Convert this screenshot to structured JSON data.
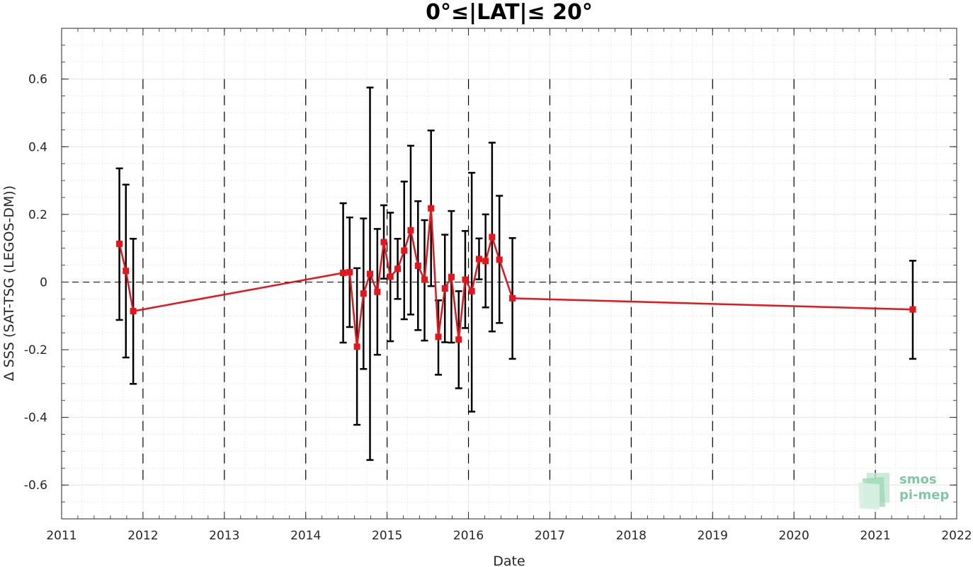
{
  "chart_data": {
    "type": "scatter",
    "title": "0°≤|LAT|≤ 20°",
    "xlabel": "Date",
    "ylabel": "Δ SSS (SAT-TSG (LEGOS-DM))",
    "xlim": [
      2011,
      2022
    ],
    "ylim": [
      -0.7,
      0.75
    ],
    "x_ticks": [
      "2011",
      "2012",
      "2013",
      "2014",
      "2015",
      "2016",
      "2017",
      "2018",
      "2019",
      "2020",
      "2021",
      "2022"
    ],
    "y_ticks": [
      "0.6",
      "0.4",
      "0.2",
      "0",
      "-0.2",
      "-0.4",
      "-0.6"
    ],
    "grid": true,
    "reference_line_y": 0,
    "year_boundaries_dashed": true,
    "series": [
      {
        "color": "#e8141b",
        "marker": "square",
        "errorbar_color": "#000000",
        "points": [
          {
            "x": 2011.71,
            "y": 0.113,
            "lo": -0.112,
            "hi": 0.336
          },
          {
            "x": 2011.79,
            "y": 0.033,
            "lo": -0.223,
            "hi": 0.288
          },
          {
            "x": 2011.88,
            "y": -0.086,
            "lo": -0.301,
            "hi": 0.128
          },
          {
            "x": 2014.46,
            "y": 0.027,
            "lo": -0.179,
            "hi": 0.233
          },
          {
            "x": 2014.54,
            "y": 0.029,
            "lo": -0.133,
            "hi": 0.191
          },
          {
            "x": 2014.63,
            "y": -0.191,
            "lo": -0.422,
            "hi": 0.041
          },
          {
            "x": 2014.71,
            "y": -0.034,
            "lo": -0.257,
            "hi": 0.188
          },
          {
            "x": 2014.79,
            "y": 0.024,
            "lo": -0.526,
            "hi": 0.575
          },
          {
            "x": 2014.88,
            "y": -0.029,
            "lo": -0.215,
            "hi": 0.157
          },
          {
            "x": 2014.96,
            "y": 0.118,
            "lo": 0.01,
            "hi": 0.227
          },
          {
            "x": 2015.04,
            "y": 0.016,
            "lo": -0.175,
            "hi": 0.205
          },
          {
            "x": 2015.13,
            "y": 0.039,
            "lo": -0.05,
            "hi": 0.128
          },
          {
            "x": 2015.21,
            "y": 0.093,
            "lo": -0.11,
            "hi": 0.297
          },
          {
            "x": 2015.29,
            "y": 0.153,
            "lo": -0.096,
            "hi": 0.403
          },
          {
            "x": 2015.38,
            "y": 0.048,
            "lo": -0.142,
            "hi": 0.239
          },
          {
            "x": 2015.46,
            "y": 0.007,
            "lo": -0.173,
            "hi": 0.183
          },
          {
            "x": 2015.54,
            "y": 0.218,
            "lo": -0.012,
            "hi": 0.448
          },
          {
            "x": 2015.63,
            "y": -0.162,
            "lo": -0.274,
            "hi": -0.054
          },
          {
            "x": 2015.71,
            "y": -0.019,
            "lo": -0.178,
            "hi": 0.14
          },
          {
            "x": 2015.79,
            "y": 0.015,
            "lo": -0.179,
            "hi": 0.21
          },
          {
            "x": 2015.88,
            "y": -0.17,
            "lo": -0.314,
            "hi": -0.027
          },
          {
            "x": 2015.96,
            "y": 0.007,
            "lo": -0.136,
            "hi": 0.151
          },
          {
            "x": 2016.04,
            "y": -0.027,
            "lo": -0.383,
            "hi": 0.323
          },
          {
            "x": 2016.13,
            "y": 0.068,
            "lo": 0.008,
            "hi": 0.129
          },
          {
            "x": 2016.21,
            "y": 0.062,
            "lo": -0.075,
            "hi": 0.2
          },
          {
            "x": 2016.29,
            "y": 0.133,
            "lo": -0.146,
            "hi": 0.412
          },
          {
            "x": 2016.38,
            "y": 0.066,
            "lo": -0.121,
            "hi": 0.255
          },
          {
            "x": 2016.54,
            "y": -0.048,
            "lo": -0.227,
            "hi": 0.13
          },
          {
            "x": 2021.46,
            "y": -0.081,
            "lo": -0.227,
            "hi": 0.063
          }
        ]
      }
    ]
  },
  "logo": {
    "line1": "smos",
    "line2": "pi-mep"
  }
}
